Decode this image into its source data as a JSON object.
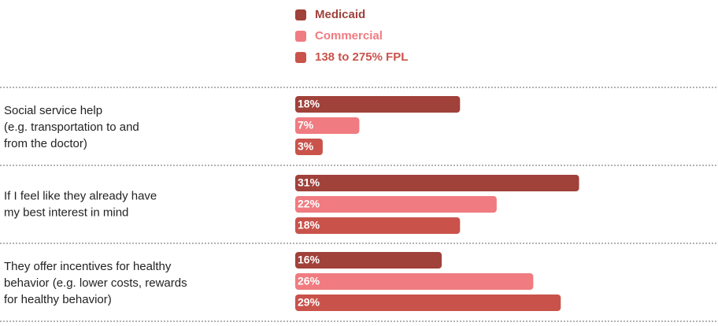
{
  "chart_data": {
    "type": "bar",
    "categories": [
      [
        "Social service help",
        "(e.g. transportation to and",
        "from the doctor)"
      ],
      [
        "If I feel like they already have",
        "my best interest in mind"
      ],
      [
        "They offer incentives for healthy",
        "behavior (e.g. lower costs, rewards",
        "for healthy behavior)"
      ]
    ],
    "series": [
      {
        "name": "Medicaid",
        "color": "#a0413a",
        "values": [
          18,
          31,
          16
        ],
        "value_labels": [
          "18%",
          "31%",
          "16%"
        ]
      },
      {
        "name": "Commercial",
        "color": "#f07b80",
        "values": [
          7,
          22,
          26
        ],
        "value_labels": [
          "7%",
          "22%",
          "26%"
        ]
      },
      {
        "name": "138 to 275% FPL",
        "color": "#c9534b",
        "values": [
          3,
          18,
          29
        ],
        "value_labels": [
          "3%",
          "18%",
          "29%"
        ]
      }
    ]
  }
}
